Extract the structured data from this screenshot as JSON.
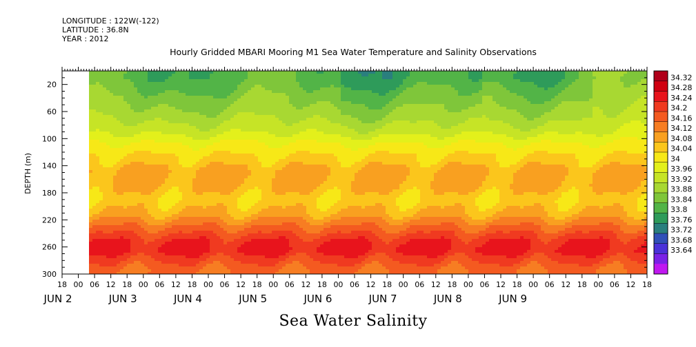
{
  "header": {
    "longitude": "LONGITUDE : 122W(-122)",
    "latitude": "LATITUDE : 36.8N",
    "year": "YEAR : 2012"
  },
  "chart_data": {
    "type": "heatmap",
    "title": "Hourly Gridded MBARI Mooring M1 Sea Water Temperature and Salinity Observations",
    "xlabel": "Sea Water Salinity",
    "ylabel": "DEPTH (m)",
    "ylim": [
      300,
      0
    ],
    "y_ticks": [
      "20",
      "60",
      "100",
      "140",
      "180",
      "220",
      "260",
      "300"
    ],
    "x_hour_ticks": [
      "18",
      "00",
      "06",
      "12",
      "18",
      "00",
      "06",
      "12",
      "18",
      "00",
      "06",
      "12",
      "18",
      "00",
      "06",
      "12",
      "18",
      "00",
      "06",
      "12",
      "18",
      "00",
      "06",
      "12",
      "18",
      "00",
      "06",
      "12",
      "18",
      "00",
      "06",
      "12",
      "18",
      "00",
      "06",
      "12",
      "18"
    ],
    "x_day_labels": [
      "JUN  2",
      "JUN  3",
      "JUN  4",
      "JUN  5",
      "JUN  6",
      "JUN  7",
      "JUN  8",
      "JUN  9"
    ],
    "colorbar_levels": [
      "34.32",
      "34.28",
      "34.24",
      "34.2",
      "34.16",
      "34.12",
      "34.08",
      "34.04",
      "34",
      "33.96",
      "33.92",
      "33.88",
      "33.84",
      "33.8",
      "33.76",
      "33.72",
      "33.68",
      "33.64"
    ],
    "colorbar_colors": [
      "#b0001a",
      "#d00010",
      "#e8141c",
      "#f03a20",
      "#f45a20",
      "#f77d22",
      "#f9a020",
      "#fbc61c",
      "#f7e817",
      "#e3f01b",
      "#c6e426",
      "#a8d832",
      "#7fc63a",
      "#52b447",
      "#2e9b5a",
      "#2a7f7e",
      "#3050b8",
      "#4a32d8",
      "#7a22e6",
      "#c018f0"
    ],
    "depth_profile": [
      {
        "depth": 10,
        "value": 33.86
      },
      {
        "depth": 30,
        "value": 33.89
      },
      {
        "depth": 50,
        "value": 33.92
      },
      {
        "depth": 70,
        "value": 33.95
      },
      {
        "depth": 90,
        "value": 33.99
      },
      {
        "depth": 110,
        "value": 34.05
      },
      {
        "depth": 130,
        "value": 34.09
      },
      {
        "depth": 150,
        "value": 34.13
      },
      {
        "depth": 170,
        "value": 34.12
      },
      {
        "depth": 190,
        "value": 34.09
      },
      {
        "depth": 210,
        "value": 34.12
      },
      {
        "depth": 230,
        "value": 34.2
      },
      {
        "depth": 250,
        "value": 34.27
      },
      {
        "depth": 265,
        "value": 34.29
      },
      {
        "depth": 280,
        "value": 34.24
      },
      {
        "depth": 295,
        "value": 34.2
      }
    ]
  }
}
